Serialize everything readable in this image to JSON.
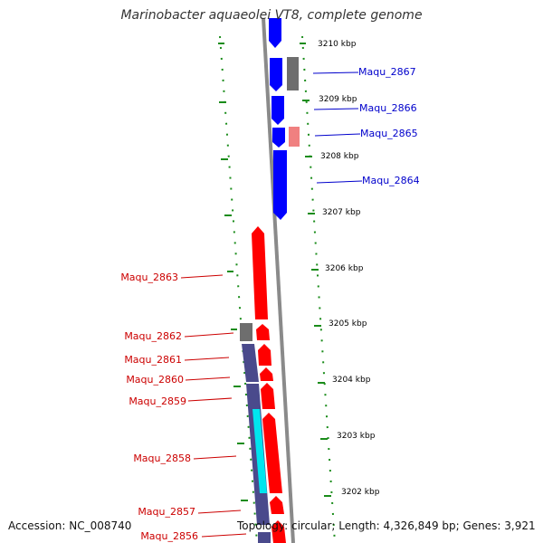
{
  "genome_map": {
    "title": "Marinobacter aquaeolei VT8, complete genome",
    "accession_text": "Accession: NC_008740",
    "topology_text": "Topology: circular; Length: 4,326,849 bp; Genes: 3,921",
    "colors": {
      "forward_cds": "#0000ff",
      "reverse_cds": "#ff0000",
      "gray_feature": "#6e6e6e",
      "light_feature": "#f08080",
      "dark_feature": "#4a4a8c",
      "cyan_feature": "#00e5ee",
      "ruler_dots": "#1a8c1a",
      "backbone": "#8a8a8a",
      "forward_label": "#0000cc",
      "reverse_label": "#cc0000"
    },
    "ruler_labels": [
      "3210 kbp",
      "3209 kbp",
      "3208 kbp",
      "3207 kbp",
      "3206 kbp",
      "3205 kbp",
      "3204 kbp",
      "3203 kbp",
      "3202 kbp"
    ],
    "forward_genes": [
      "Maqu_2867",
      "Maqu_2866",
      "Maqu_2865",
      "Maqu_2864"
    ],
    "reverse_genes": [
      "Maqu_2863",
      "Maqu_2862",
      "Maqu_2861",
      "Maqu_2860",
      "Maqu_2859",
      "Maqu_2858",
      "Maqu_2857",
      "Maqu_2856"
    ]
  }
}
